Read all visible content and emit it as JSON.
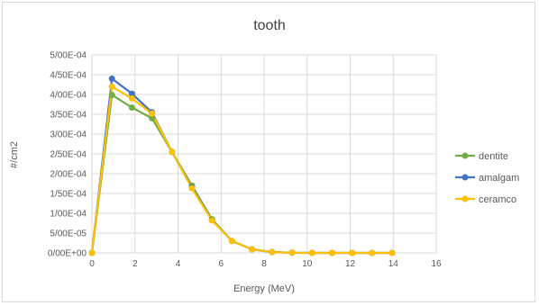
{
  "chart_data": {
    "type": "line",
    "title": "tooth",
    "xlabel": "Energy (MeV)",
    "ylabel": "#/cm2",
    "xlim": [
      0,
      16
    ],
    "ylim": [
      0,
      0.0005
    ],
    "x_ticks": [
      0,
      2,
      4,
      6,
      8,
      10,
      12,
      14,
      16
    ],
    "x_tick_labels": [
      "0",
      "2",
      "4",
      "6",
      "8",
      "10",
      "12",
      "14",
      "16"
    ],
    "y_ticks": [
      0,
      5e-05,
      0.0001,
      0.00015,
      0.0002,
      0.00025,
      0.0003,
      0.00035,
      0.0004,
      0.00045,
      0.0005
    ],
    "y_tick_labels": [
      "0/00E+00",
      "5/00E-05",
      "1/00E-04",
      "1/50E-04",
      "2/00E-04",
      "2/50E-04",
      "3/00E-04",
      "3/50E-04",
      "4/00E-04",
      "4/50E-04",
      "5/00E-04"
    ],
    "grid": true,
    "legend_position": "right",
    "x": [
      0,
      0.93,
      1.86,
      2.79,
      3.72,
      4.65,
      5.58,
      6.51,
      7.44,
      8.37,
      9.3,
      10.23,
      11.16,
      12.09,
      13.02,
      13.95
    ],
    "series": [
      {
        "name": "dentite",
        "color": "#70ad47",
        "values": [
          0,
          0.000399,
          0.000367,
          0.00034,
          0.000255,
          0.00017,
          8.5e-05,
          3e-05,
          9e-06,
          2e-06,
          5e-07,
          0,
          0,
          0,
          0,
          0
        ]
      },
      {
        "name": "amalgam",
        "color": "#4472c4",
        "values": [
          0,
          0.00044,
          0.000402,
          0.000355,
          0.000255,
          0.000165,
          8.3e-05,
          3e-05,
          9e-06,
          2e-06,
          5e-07,
          0,
          0,
          0,
          0,
          0
        ]
      },
      {
        "name": "ceramco",
        "color": "#ffc000",
        "values": [
          0,
          0.00042,
          0.00039,
          0.000352,
          0.000255,
          0.000163,
          8.2e-05,
          3e-05,
          9e-06,
          2e-06,
          5e-07,
          0,
          0,
          0,
          0,
          0
        ]
      }
    ]
  }
}
